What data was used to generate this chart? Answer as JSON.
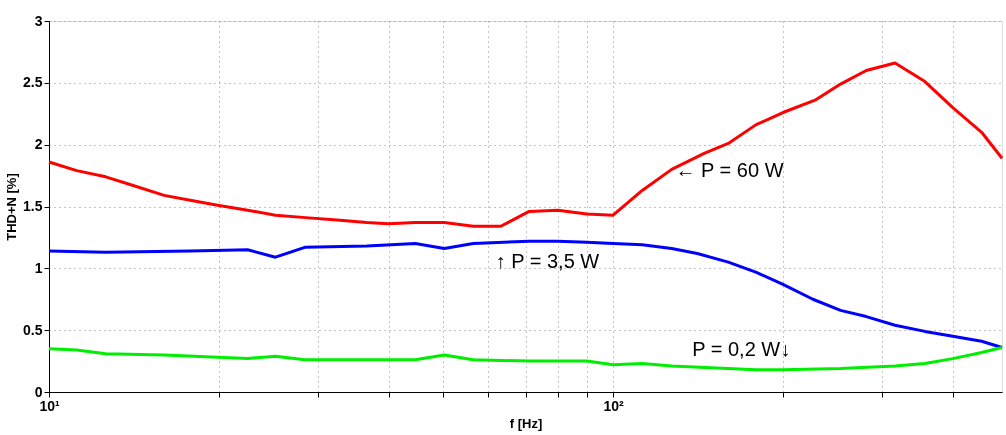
{
  "chart_data": {
    "type": "line",
    "xlabel": "f [Hz]",
    "ylabel": "THD+N [%]",
    "log": "x",
    "grid": true,
    "marker": "none",
    "line_style": "solid",
    "xlim": [
      10,
      489
    ],
    "ylim": [
      0,
      3
    ],
    "xticks": [
      {
        "value": 10,
        "label": "10¹"
      },
      {
        "value": 20,
        "label": null
      },
      {
        "value": 30,
        "label": null
      },
      {
        "value": 40,
        "label": null
      },
      {
        "value": 50,
        "label": null
      },
      {
        "value": 60,
        "label": null
      },
      {
        "value": 70,
        "label": null
      },
      {
        "value": 80,
        "label": null
      },
      {
        "value": 90,
        "label": null
      },
      {
        "value": 100,
        "label": "10²"
      },
      {
        "value": 200,
        "label": null
      },
      {
        "value": 300,
        "label": null
      },
      {
        "value": 400,
        "label": null
      }
    ],
    "yticks": [
      0,
      0.5,
      1,
      1.5,
      2,
      2.5,
      3
    ],
    "series": [
      {
        "color": "#ff0000",
        "x": [
          10,
          11.2,
          12.6,
          14.1,
          16,
          17.8,
          19.9,
          22.5,
          25.2,
          28.5,
          32.4,
          36.6,
          40,
          44.6,
          50.2,
          56.5,
          63.2,
          71,
          79.8,
          89.8,
          100,
          112.6,
          127,
          145,
          160,
          179,
          200,
          228,
          253,
          281,
          316,
          357,
          400,
          450,
          489
        ],
        "values": [
          1.86,
          1.79,
          1.74,
          1.67,
          1.59,
          1.55,
          1.51,
          1.47,
          1.43,
          1.41,
          1.39,
          1.37,
          1.36,
          1.37,
          1.37,
          1.34,
          1.34,
          1.46,
          1.47,
          1.44,
          1.43,
          1.63,
          1.8,
          1.93,
          2.01,
          2.16,
          2.26,
          2.36,
          2.49,
          2.6,
          2.66,
          2.51,
          2.3,
          2.1,
          1.89
        ]
      },
      {
        "color": "#0000ff",
        "x": [
          10,
          12.6,
          17.8,
          22.5,
          25.2,
          28.4,
          36.6,
          44.6,
          50.2,
          56.5,
          71,
          79.8,
          89.8,
          100,
          112.6,
          127,
          141,
          160,
          179,
          200,
          226,
          253,
          281,
          316,
          357,
          400,
          450,
          489
        ],
        "values": [
          1.14,
          1.13,
          1.14,
          1.15,
          1.09,
          1.17,
          1.18,
          1.2,
          1.16,
          1.2,
          1.22,
          1.22,
          1.21,
          1.2,
          1.19,
          1.16,
          1.12,
          1.05,
          0.97,
          0.87,
          0.75,
          0.66,
          0.61,
          0.54,
          0.49,
          0.45,
          0.41,
          0.36
        ]
      },
      {
        "color": "#00ee00",
        "x": [
          10,
          11.2,
          12.6,
          16,
          19.9,
          22.5,
          25.2,
          28.4,
          36.6,
          44.6,
          50.2,
          56.5,
          71,
          89.8,
          100,
          112.6,
          127,
          179,
          200,
          253,
          316,
          357,
          400,
          450,
          489
        ],
        "values": [
          0.35,
          0.34,
          0.31,
          0.3,
          0.28,
          0.27,
          0.29,
          0.26,
          0.26,
          0.26,
          0.3,
          0.26,
          0.25,
          0.25,
          0.22,
          0.23,
          0.21,
          0.18,
          0.18,
          0.19,
          0.21,
          0.23,
          0.27,
          0.32,
          0.36
        ]
      }
    ],
    "annotations": [
      {
        "text": "← P = 60 W",
        "x": 129,
        "y": 1.79
      },
      {
        "text": "↑ P = 3,5 W",
        "x": 61.9,
        "y": 1.21
      },
      {
        "text": "P = 0,2 W↓",
        "x": 206,
        "y": 0.18
      }
    ]
  }
}
